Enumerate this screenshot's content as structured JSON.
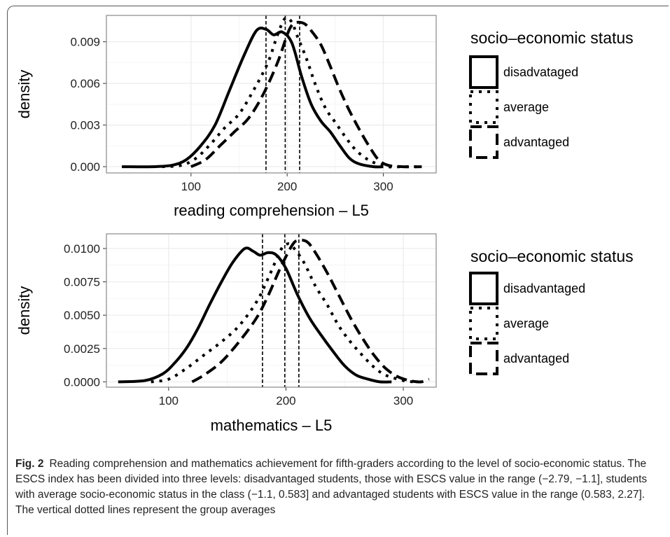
{
  "chart_data": [
    {
      "type": "line",
      "xlabel": "reading comprehension – L5",
      "ylabel": "density",
      "xlim": [
        12,
        355
      ],
      "ylim": [
        -0.00045,
        0.0109
      ],
      "xticks": [
        100,
        200,
        300
      ],
      "xtick_labels": [
        "100",
        "200",
        "300"
      ],
      "yticks": [
        0.0,
        0.003,
        0.006,
        0.009
      ],
      "ytick_labels": [
        "0.000",
        "0.003",
        "0.006",
        "0.009"
      ],
      "grid": true,
      "legend_title": "socio–economic status",
      "legend_position": "right",
      "means": [
        178,
        198,
        213
      ],
      "series": [
        {
          "name": "disadvataged",
          "x": [
            28,
            60,
            80,
            95,
            110,
            125,
            140,
            155,
            168,
            178,
            186,
            195,
            205,
            215,
            225,
            235,
            245,
            255,
            265,
            275,
            290,
            300
          ],
          "y": [
            0.0,
            0.0,
            0.0001,
            0.0005,
            0.0015,
            0.003,
            0.0055,
            0.008,
            0.0098,
            0.0099,
            0.0095,
            0.0097,
            0.0089,
            0.0065,
            0.0045,
            0.0033,
            0.0025,
            0.0015,
            0.0006,
            0.0002,
            0.0,
            0.0
          ]
        },
        {
          "name": "average",
          "x": [
            70,
            90,
            105,
            120,
            135,
            150,
            165,
            180,
            190,
            198,
            205,
            210,
            220,
            230,
            240,
            250,
            260,
            270,
            280,
            290,
            305,
            320,
            340
          ],
          "y": [
            0.0,
            0.0001,
            0.0006,
            0.0016,
            0.0028,
            0.0038,
            0.0055,
            0.0075,
            0.0095,
            0.0107,
            0.0104,
            0.0095,
            0.0078,
            0.0058,
            0.0042,
            0.0032,
            0.0022,
            0.0013,
            0.0007,
            0.0003,
            0.0,
            0.0,
            0.0
          ]
        },
        {
          "name": "advantaged",
          "x": [
            100,
            115,
            130,
            145,
            160,
            175,
            190,
            200,
            205,
            210,
            218,
            225,
            235,
            245,
            255,
            265,
            275,
            285,
            295,
            305,
            320,
            340
          ],
          "y": [
            0.0,
            0.0005,
            0.0015,
            0.0025,
            0.0035,
            0.0052,
            0.0075,
            0.0095,
            0.0102,
            0.0104,
            0.0103,
            0.0098,
            0.0088,
            0.0072,
            0.0055,
            0.004,
            0.0027,
            0.0015,
            0.0005,
            0.0001,
            0.0,
            0.0
          ]
        }
      ]
    },
    {
      "type": "line",
      "xlabel": "mathematics – L5",
      "ylabel": "density",
      "xlim": [
        47,
        328
      ],
      "ylim": [
        -0.0004,
        0.0111
      ],
      "xticks": [
        100,
        200,
        300
      ],
      "xtick_labels": [
        "100",
        "200",
        "300"
      ],
      "yticks": [
        0.0,
        0.0025,
        0.005,
        0.0075,
        0.01
      ],
      "ytick_labels": [
        "0.0000",
        "0.0025",
        "0.0050",
        "0.0075",
        "0.0100"
      ],
      "grid": true,
      "legend_title": "socio–economic status",
      "legend_position": "right",
      "means": [
        180,
        199,
        211
      ],
      "series": [
        {
          "name": "disadvantaged",
          "x": [
            57,
            80,
            95,
            105,
            115,
            125,
            135,
            145,
            155,
            165,
            172,
            178,
            185,
            192,
            200,
            210,
            220,
            230,
            240,
            250,
            260,
            270,
            280,
            290
          ],
          "y": [
            0.0,
            0.0001,
            0.0006,
            0.0014,
            0.0025,
            0.004,
            0.0058,
            0.0075,
            0.009,
            0.01,
            0.0098,
            0.0095,
            0.0097,
            0.0095,
            0.0085,
            0.0065,
            0.0048,
            0.0035,
            0.0023,
            0.0012,
            0.0005,
            0.0002,
            0.0,
            0.0
          ]
        },
        {
          "name": "average",
          "x": [
            85,
            100,
            115,
            130,
            145,
            160,
            175,
            185,
            195,
            200,
            205,
            215,
            225,
            235,
            245,
            255,
            265,
            275,
            285,
            300,
            310,
            320
          ],
          "y": [
            0.0,
            0.0002,
            0.001,
            0.002,
            0.003,
            0.0042,
            0.006,
            0.0078,
            0.0098,
            0.0103,
            0.0102,
            0.009,
            0.0072,
            0.0058,
            0.0042,
            0.003,
            0.002,
            0.0011,
            0.0005,
            0.0001,
            0.0,
            0.0
          ]
        },
        {
          "name": "advantaged",
          "x": [
            120,
            130,
            145,
            160,
            175,
            185,
            195,
            205,
            210,
            218,
            225,
            235,
            245,
            255,
            265,
            275,
            285,
            295,
            305,
            315,
            322
          ],
          "y": [
            0.0,
            0.0005,
            0.0015,
            0.003,
            0.0048,
            0.0065,
            0.0085,
            0.0102,
            0.0106,
            0.0105,
            0.0097,
            0.0082,
            0.0065,
            0.0048,
            0.0033,
            0.002,
            0.001,
            0.0004,
            0.0001,
            0.0,
            0.0002
          ]
        }
      ]
    }
  ],
  "caption": {
    "label": "Fig. 2",
    "text": "Reading comprehension and mathematics achievement for fifth-graders according to the level of socio-economic status. The ESCS index has been divided into three levels: disadvantaged students, those with ESCS value in the range (−2.79, −1.1], students with average socio-economic status in the class (−1.1, 0.583] and advantaged students with ESCS value in the range (0.583, 2.27]. The vertical dotted lines represent the group averages"
  },
  "styles": {
    "line_color": "#000000",
    "grid_major": "#ebebeb",
    "grid_minor": "#f5f5f5",
    "panel_border": "#888888"
  }
}
